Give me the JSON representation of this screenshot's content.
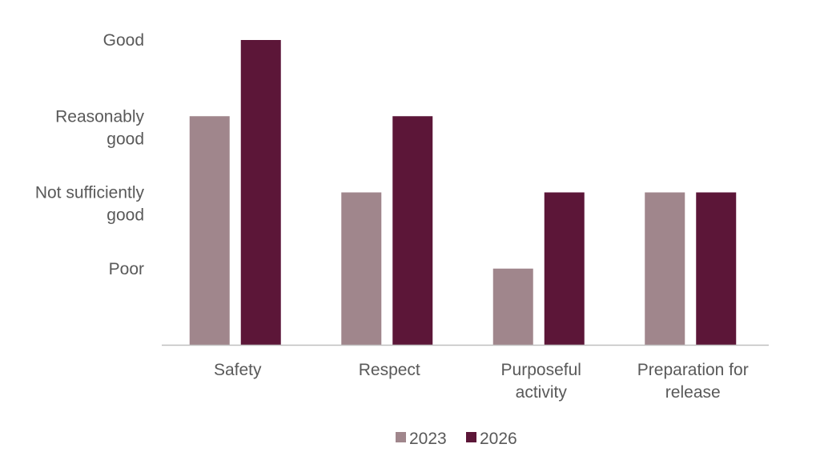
{
  "chart_data": {
    "type": "bar",
    "categories": [
      [
        "Safety"
      ],
      [
        "Respect"
      ],
      [
        "Purposeful",
        "activity"
      ],
      [
        "Preparation for",
        "release"
      ]
    ],
    "series": [
      {
        "name": "2023",
        "values": [
          3,
          2,
          1,
          2
        ],
        "color": "#a0868c"
      },
      {
        "name": "2026",
        "values": [
          4,
          3,
          2,
          2
        ],
        "color": "#5c1638"
      }
    ],
    "y_ticks": [
      {
        "value": 1,
        "lines": [
          "Poor"
        ]
      },
      {
        "value": 2,
        "lines": [
          "Not sufficiently",
          "good"
        ]
      },
      {
        "value": 3,
        "lines": [
          "Reasonably",
          "good"
        ]
      },
      {
        "value": 4,
        "lines": [
          "Good"
        ]
      }
    ],
    "ylim": [
      0,
      4
    ],
    "title": "",
    "xlabel": "",
    "ylabel": "",
    "grid": false,
    "legend": "bottom",
    "axis_color": "#bfbfbf"
  }
}
